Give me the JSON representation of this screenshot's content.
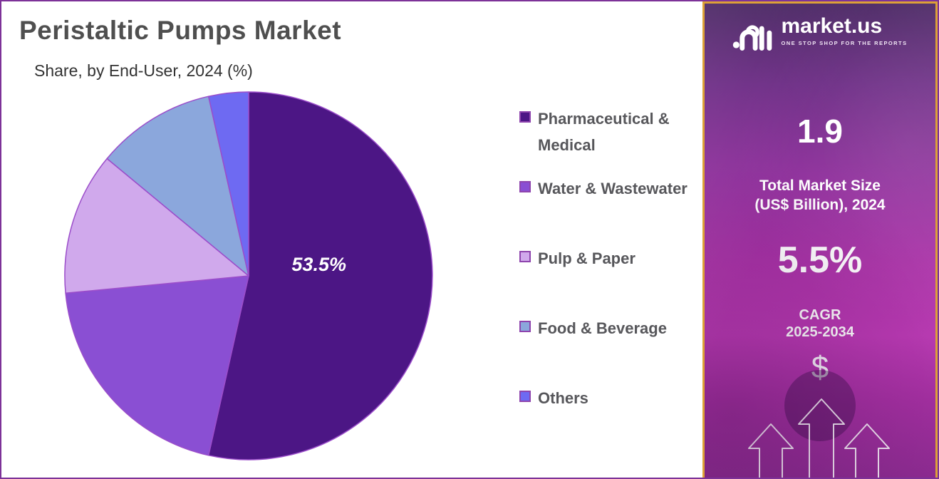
{
  "header": {
    "title": "Peristaltic Pumps Market",
    "subtitle": "Share, by End-User, 2024 (%)"
  },
  "chart_data": {
    "type": "pie",
    "title": "Peristaltic Pumps Market",
    "subtitle": "Share, by End-User, 2024 (%)",
    "unit": "percent share",
    "start_angle_deg": 0,
    "direction": "clockwise",
    "legend_position": "right",
    "slice_stroke": "#9b4dca",
    "slice_stroke_width": 1.5,
    "slices": [
      {
        "label": "Pharmaceutical & Medical",
        "value": 53.5,
        "color": "#4c1685",
        "data_label": "53.5%"
      },
      {
        "label": "Water & Wastewater",
        "value": 20.0,
        "color": "#8a4fd3"
      },
      {
        "label": "Pulp & Paper",
        "value": 12.5,
        "color": "#d0a9ec"
      },
      {
        "label": "Food & Beverage",
        "value": 10.5,
        "color": "#8ba7dc"
      },
      {
        "label": "Others",
        "value": 3.5,
        "color": "#6e6af2"
      }
    ]
  },
  "sidebar": {
    "logo": {
      "text": "market.us",
      "tagline": "ONE STOP SHOP FOR THE REPORTS"
    },
    "market_size": {
      "value": "1.9",
      "label_line1": "Total Market Size",
      "label_line2": "(US$ Billion), 2024"
    },
    "cagr": {
      "value": "5.5%",
      "label_line1": "CAGR",
      "label_line2": "2025-2034"
    },
    "dollar_symbol": "$"
  },
  "colors": {
    "page_border": "#7d3298",
    "sidebar_border": "#dda137",
    "title_text": "#4f4f4f",
    "legend_text": "#57575b"
  }
}
